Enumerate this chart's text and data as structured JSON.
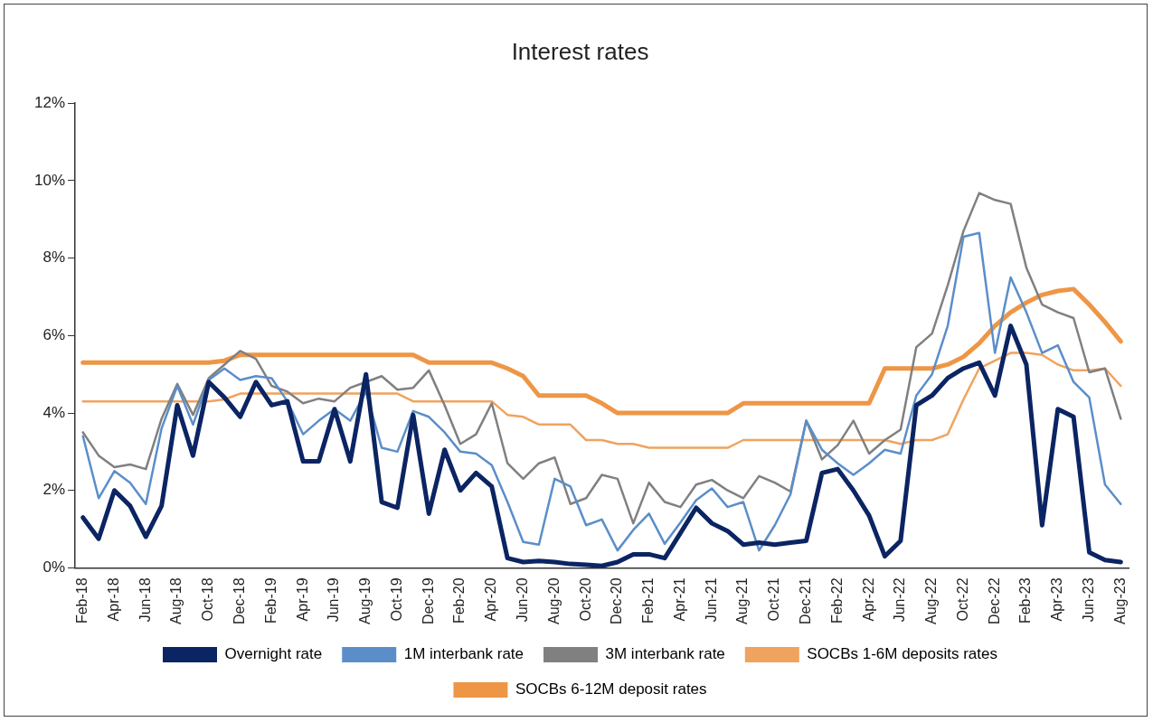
{
  "chart_data": {
    "type": "line",
    "title": "Interest rates",
    "categories": [
      "Feb-18",
      null,
      "Apr-18",
      null,
      "Jun-18",
      null,
      "Aug-18",
      null,
      "Oct-18",
      null,
      "Dec-18",
      null,
      "Feb-19",
      null,
      "Apr-19",
      null,
      "Jun-19",
      null,
      "Aug-19",
      null,
      "Oct-19",
      null,
      "Dec-19",
      null,
      "Feb-20",
      null,
      "Apr-20",
      null,
      "Jun-20",
      null,
      "Aug-20",
      null,
      "Oct-20",
      null,
      "Dec-20",
      null,
      "Feb-21",
      null,
      "Apr-21",
      null,
      "Jun-21",
      null,
      "Aug-21",
      null,
      "Oct-21",
      null,
      "Dec-21",
      null,
      "Feb-22",
      null,
      "Apr-22",
      null,
      "Jun-22",
      null,
      "Aug-22",
      null,
      "Oct-22",
      null,
      "Dec-22",
      null,
      "Feb-23",
      null,
      "Apr-23",
      null,
      "Jun-23",
      null,
      "Aug-23"
    ],
    "series": [
      {
        "name": "Overnight rate",
        "color": "#0b2463",
        "values": [
          1.3,
          0.75,
          2.0,
          1.6,
          0.8,
          1.6,
          4.2,
          2.9,
          4.8,
          4.4,
          3.9,
          4.8,
          4.2,
          4.3,
          2.75,
          2.75,
          4.1,
          2.75,
          5.0,
          1.7,
          1.55,
          3.95,
          1.4,
          3.05,
          2.0,
          2.45,
          2.1,
          0.25,
          0.15,
          0.18,
          0.15,
          0.1,
          0.08,
          0.05,
          0.15,
          0.35,
          0.35,
          0.25,
          0.9,
          1.55,
          1.15,
          0.95,
          0.6,
          0.65,
          0.6,
          0.65,
          0.7,
          2.45,
          2.55,
          2.0,
          1.35,
          0.3,
          0.7,
          4.2,
          4.45,
          4.9,
          5.15,
          5.3,
          4.45,
          6.25,
          5.25,
          1.1,
          4.1,
          3.9,
          0.4,
          0.2,
          0.15
        ]
      },
      {
        "name": "1M interbank rate",
        "color": "#5b8ec9",
        "values": [
          3.4,
          1.8,
          2.5,
          2.2,
          1.65,
          3.6,
          4.7,
          3.7,
          4.85,
          5.15,
          4.85,
          4.95,
          4.9,
          4.3,
          3.45,
          3.8,
          4.1,
          3.8,
          4.55,
          3.1,
          3.0,
          4.05,
          3.9,
          3.5,
          3.0,
          2.95,
          2.65,
          1.7,
          0.67,
          0.6,
          2.3,
          2.1,
          1.1,
          1.25,
          0.45,
          0.98,
          1.4,
          0.62,
          1.17,
          1.75,
          2.05,
          1.57,
          1.7,
          0.45,
          1.1,
          1.9,
          3.8,
          3.05,
          2.7,
          2.4,
          2.7,
          3.05,
          2.95,
          4.45,
          5.0,
          6.25,
          8.55,
          8.65,
          5.55,
          7.5,
          6.6,
          5.55,
          5.75,
          4.8,
          4.4,
          2.15,
          1.65
        ]
      },
      {
        "name": "3M interbank rate",
        "color": "#808080",
        "values": [
          3.5,
          2.9,
          2.6,
          2.67,
          2.55,
          3.85,
          4.75,
          3.95,
          4.9,
          5.25,
          5.6,
          5.4,
          4.7,
          4.55,
          4.25,
          4.37,
          4.3,
          4.65,
          4.8,
          4.95,
          4.6,
          4.65,
          5.1,
          4.2,
          3.2,
          3.45,
          4.25,
          2.7,
          2.3,
          2.7,
          2.85,
          1.65,
          1.8,
          2.4,
          2.3,
          1.15,
          2.2,
          1.7,
          1.57,
          2.15,
          2.27,
          2.0,
          1.8,
          2.37,
          2.2,
          1.97,
          3.8,
          2.8,
          3.17,
          3.8,
          2.95,
          3.3,
          3.57,
          5.7,
          6.05,
          7.3,
          8.7,
          9.68,
          9.5,
          9.4,
          7.75,
          6.8,
          6.6,
          6.45,
          5.05,
          5.15,
          3.85
        ]
      },
      {
        "name": "SOCBs 1-6M deposits rates",
        "color": "#f0a35e",
        "values": [
          4.3,
          4.3,
          4.3,
          4.3,
          4.3,
          4.3,
          4.3,
          4.3,
          4.3,
          4.35,
          4.5,
          4.5,
          4.5,
          4.5,
          4.5,
          4.5,
          4.5,
          4.5,
          4.5,
          4.5,
          4.5,
          4.3,
          4.3,
          4.3,
          4.3,
          4.3,
          4.3,
          3.95,
          3.9,
          3.7,
          3.7,
          3.7,
          3.3,
          3.3,
          3.2,
          3.2,
          3.1,
          3.1,
          3.1,
          3.1,
          3.1,
          3.1,
          3.3,
          3.3,
          3.3,
          3.3,
          3.3,
          3.3,
          3.3,
          3.3,
          3.3,
          3.3,
          3.2,
          3.3,
          3.3,
          3.45,
          4.35,
          5.15,
          5.35,
          5.55,
          5.55,
          5.5,
          5.25,
          5.1,
          5.1,
          5.15,
          4.7
        ]
      },
      {
        "name": "SOCBs 6-12M deposit rates",
        "color": "#ee9646",
        "values": [
          5.3,
          5.3,
          5.3,
          5.3,
          5.3,
          5.3,
          5.3,
          5.3,
          5.3,
          5.35,
          5.5,
          5.5,
          5.5,
          5.5,
          5.5,
          5.5,
          5.5,
          5.5,
          5.5,
          5.5,
          5.5,
          5.5,
          5.3,
          5.3,
          5.3,
          5.3,
          5.3,
          5.15,
          4.95,
          4.45,
          4.45,
          4.45,
          4.45,
          4.25,
          4.0,
          4.0,
          4.0,
          4.0,
          4.0,
          4.0,
          4.0,
          4.0,
          4.25,
          4.25,
          4.25,
          4.25,
          4.25,
          4.25,
          4.25,
          4.25,
          4.25,
          5.15,
          5.15,
          5.15,
          5.15,
          5.25,
          5.45,
          5.8,
          6.25,
          6.6,
          6.85,
          7.05,
          7.15,
          7.2,
          6.8,
          6.35,
          5.85
        ]
      }
    ],
    "ylim": [
      0,
      12
    ],
    "yticks": [
      {
        "value": 0,
        "label": "0%"
      },
      {
        "value": 2,
        "label": "2%"
      },
      {
        "value": 4,
        "label": "4%"
      },
      {
        "value": 6,
        "label": "6%"
      },
      {
        "value": 8,
        "label": "8%"
      },
      {
        "value": 10,
        "label": "10%"
      },
      {
        "value": 12,
        "label": "12%"
      }
    ],
    "grid": false,
    "legend": "bottom",
    "marker": "none",
    "line_style": "solid"
  }
}
